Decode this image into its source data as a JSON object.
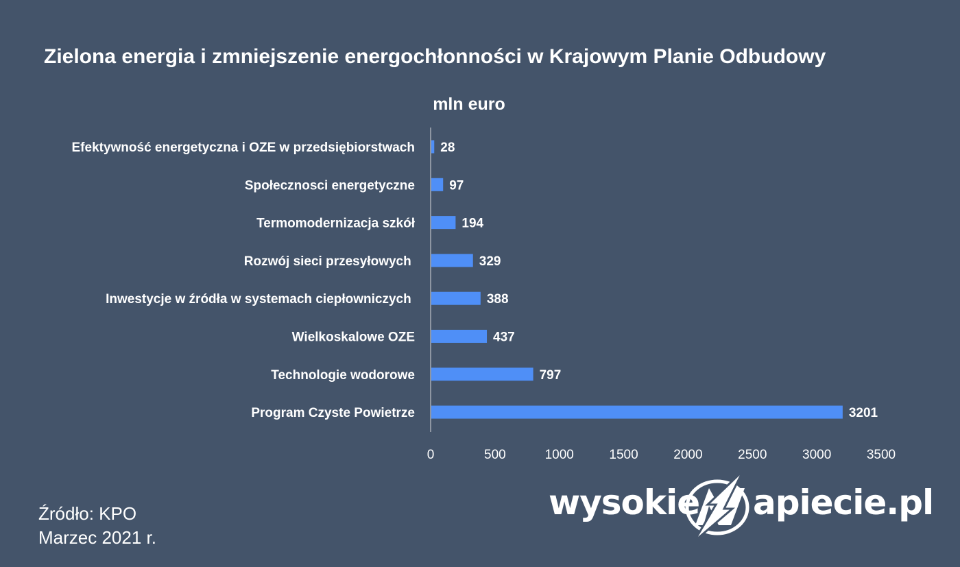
{
  "chart_data": {
    "type": "bar",
    "orientation": "horizontal",
    "title": "Zielona energia i zmniejszenie energochłonności w Krajowym Planie Odbudowy",
    "unit_label": "mln euro",
    "categories": [
      "Efektywność energetyczna i OZE w przedsiębiorstwach",
      "Społecznosci energetyczne",
      "Termomodernizacja szkół",
      "Rozwój sieci przesyłowych ",
      "Inwestycje w źródła w systemach ciepłowniczych ",
      "Wielkoskalowe OZE",
      "Technologie wodorowe",
      "Program Czyste Powietrze"
    ],
    "values": [
      28,
      97,
      194,
      329,
      388,
      437,
      797,
      3201
    ],
    "xlim": [
      0,
      3500
    ],
    "x_ticks": [
      "0",
      "500",
      "1000",
      "1500",
      "2000",
      "2500",
      "3000",
      "3500"
    ],
    "grid": false,
    "legend": "none",
    "bar_color": "#4f8ff7",
    "background_color": "#44546a"
  },
  "source": {
    "line1": "Źródło: KPO",
    "line2": "Marzec 2021 r."
  },
  "logo": {
    "left_text": "wysokie",
    "right_text": "apiecie.pl",
    "mark_icon": "lightning-n-icon"
  }
}
